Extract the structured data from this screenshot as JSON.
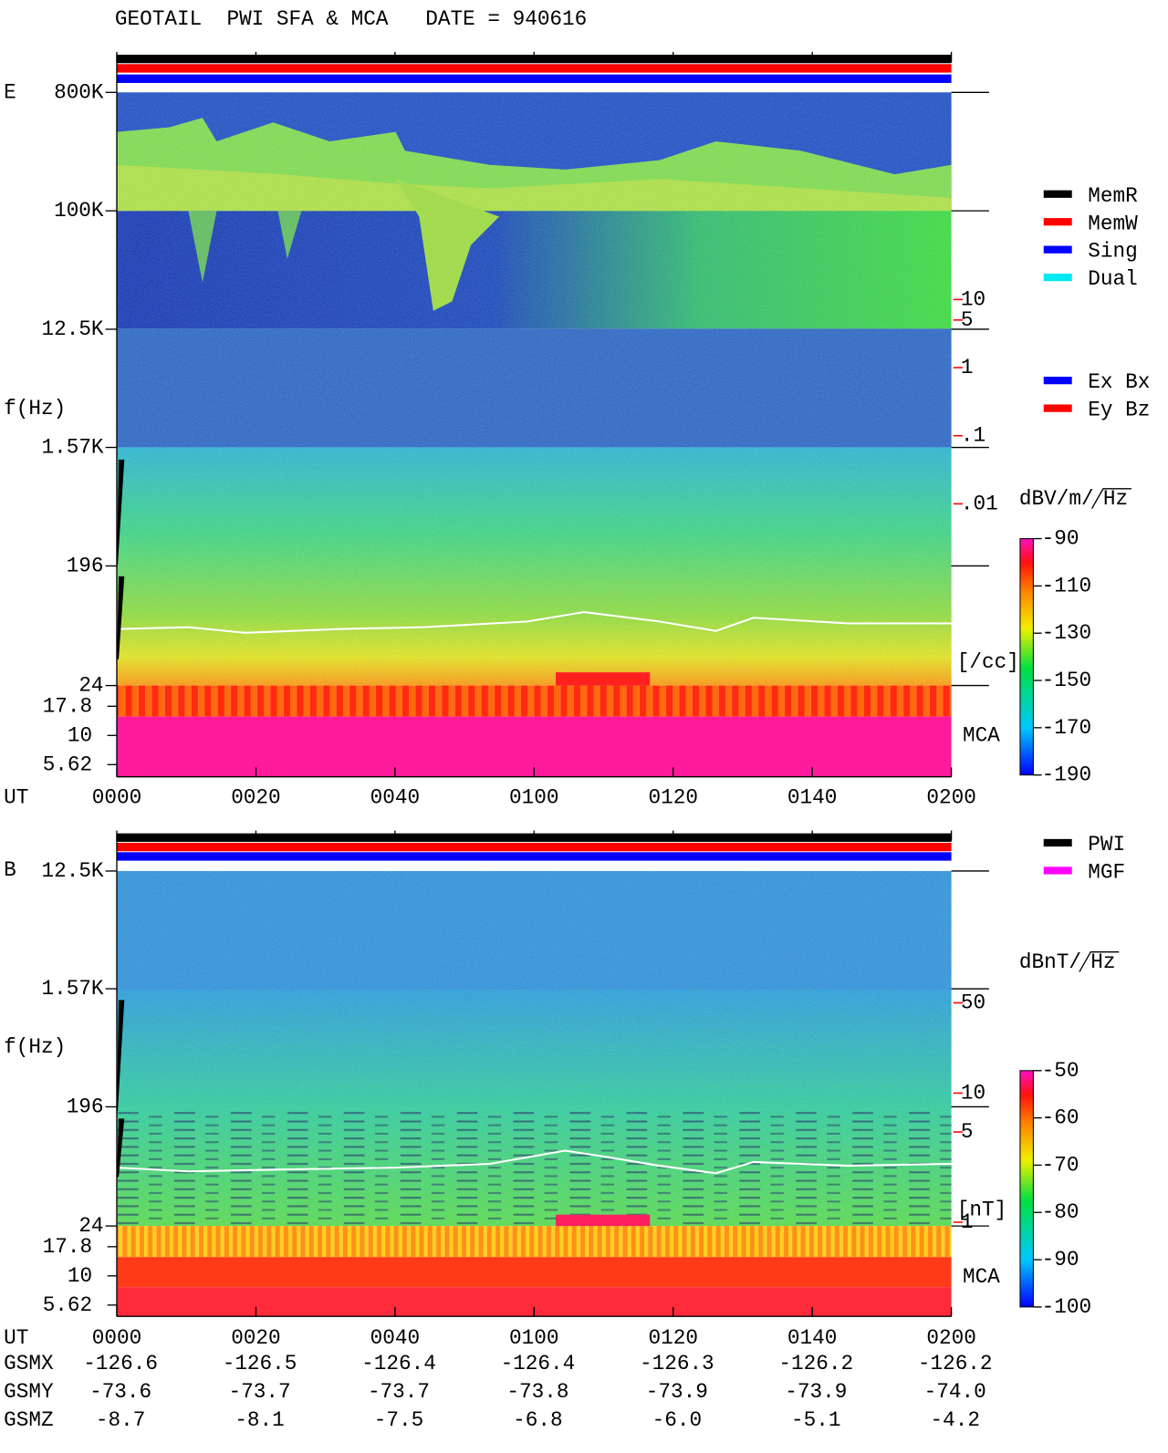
{
  "title": "GEOTAIL  PWI SFA & MCA   DATE = 940616",
  "chart_data": [
    {
      "type": "spectrogram",
      "label": "E",
      "y_label": "f(Hz)",
      "log_y": true,
      "ylim": [
        24,
        800000
      ],
      "yticks": [
        {
          "value": 800000,
          "label": "800K"
        },
        {
          "value": 100000,
          "label": "100K"
        },
        {
          "value": 12500,
          "label": "12.5K"
        },
        {
          "value": 1570,
          "label": "1.57K"
        },
        196,
        24
      ],
      "mca_label": "MCA",
      "mca_ticks": [
        17.8,
        10,
        5.62
      ],
      "x_label": "UT",
      "categories": [
        "0000",
        "0020",
        "0040",
        "0100",
        "0120",
        "0140",
        "0200"
      ],
      "y2_log": true,
      "y2lim": [
        0.01,
        10
      ],
      "y2_color": "#ff0000",
      "y2_label": "[/cc]",
      "y2ticks": [
        10,
        5,
        1,
        {
          "value": 0.1,
          "label": ".1"
        },
        {
          "value": 0.01,
          "label": ".01"
        }
      ],
      "colorbar": {
        "label": "dBV/m/",
        "label_root": "Hz",
        "lim": [
          -190,
          -90
        ],
        "ticks": [
          -90,
          -110,
          -130,
          -150,
          -170,
          -190
        ]
      },
      "legend": [
        {
          "name": "MemR",
          "color": "#000000"
        },
        {
          "name": "MemW",
          "color": "#ff0000"
        },
        {
          "name": "Sing",
          "color": "#0000ff"
        },
        {
          "name": "Dual",
          "color": "#00e8f0"
        }
      ],
      "legend2": [
        {
          "name": "Ex Bx",
          "color": "#0000ff"
        },
        {
          "name": "Ey Bz",
          "color": "#ff0000"
        }
      ]
    },
    {
      "type": "spectrogram",
      "label": "B",
      "y_label": "f(Hz)",
      "log_y": true,
      "ylim": [
        24,
        12500
      ],
      "yticks": [
        {
          "value": 12500,
          "label": "12.5K"
        },
        {
          "value": 1570,
          "label": "1.57K"
        },
        196,
        24
      ],
      "mca_label": "MCA",
      "mca_ticks": [
        17.8,
        10,
        5.62
      ],
      "x_label": "UT",
      "categories": [
        "0000",
        "0020",
        "0040",
        "0100",
        "0120",
        "0140",
        "0200"
      ],
      "y2_log": true,
      "y2lim": [
        1,
        50
      ],
      "y2_color": "#ff0000",
      "y2_label": "[nT]",
      "y2ticks": [
        50,
        10,
        5,
        1
      ],
      "colorbar": {
        "label": "dBnT/",
        "label_root": "Hz",
        "lim": [
          -100,
          -50
        ],
        "ticks": [
          -50,
          -60,
          -70,
          -80,
          -90,
          -100
        ]
      },
      "legend": [
        {
          "name": "PWI",
          "color": "#000000"
        },
        {
          "name": "MGF",
          "color": "#ff00ff"
        }
      ]
    }
  ],
  "orbit": {
    "rows": [
      {
        "name": "GSMX",
        "values": [
          "-126.6",
          "-126.5",
          "-126.4",
          "-126.4",
          "-126.3",
          "-126.2",
          "-126.2"
        ]
      },
      {
        "name": "GSMY",
        "values": [
          "-73.6",
          "-73.7",
          "-73.7",
          "-73.8",
          "-73.9",
          "-73.9",
          "-74.0"
        ]
      },
      {
        "name": "GSMZ",
        "values": [
          "-8.7",
          "-8.1",
          "-7.5",
          "-6.8",
          "-6.0",
          "-5.1",
          "-4.2"
        ]
      }
    ]
  }
}
